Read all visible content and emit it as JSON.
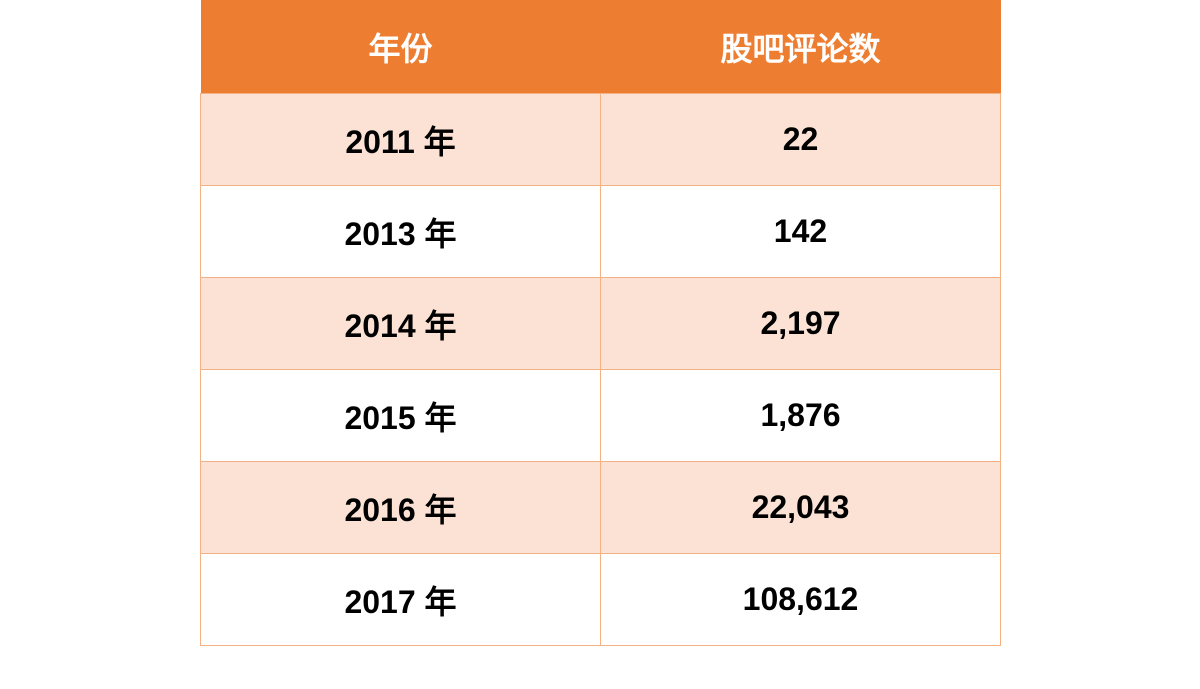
{
  "table": {
    "headers": [
      "年份",
      "股吧评论数"
    ],
    "rows": [
      [
        "2011 年",
        "22"
      ],
      [
        "2013 年",
        "142"
      ],
      [
        "2014 年",
        "2,197"
      ],
      [
        "2015 年",
        "1,876"
      ],
      [
        "2016 年",
        "22,043"
      ],
      [
        "2017 年",
        "108,612"
      ]
    ],
    "colors": {
      "header_bg": "#ed7d31",
      "header_text": "#ffffff",
      "band_bg": "#fbe2d5",
      "plain_bg": "#ffffff",
      "border": "#f4b183"
    }
  }
}
